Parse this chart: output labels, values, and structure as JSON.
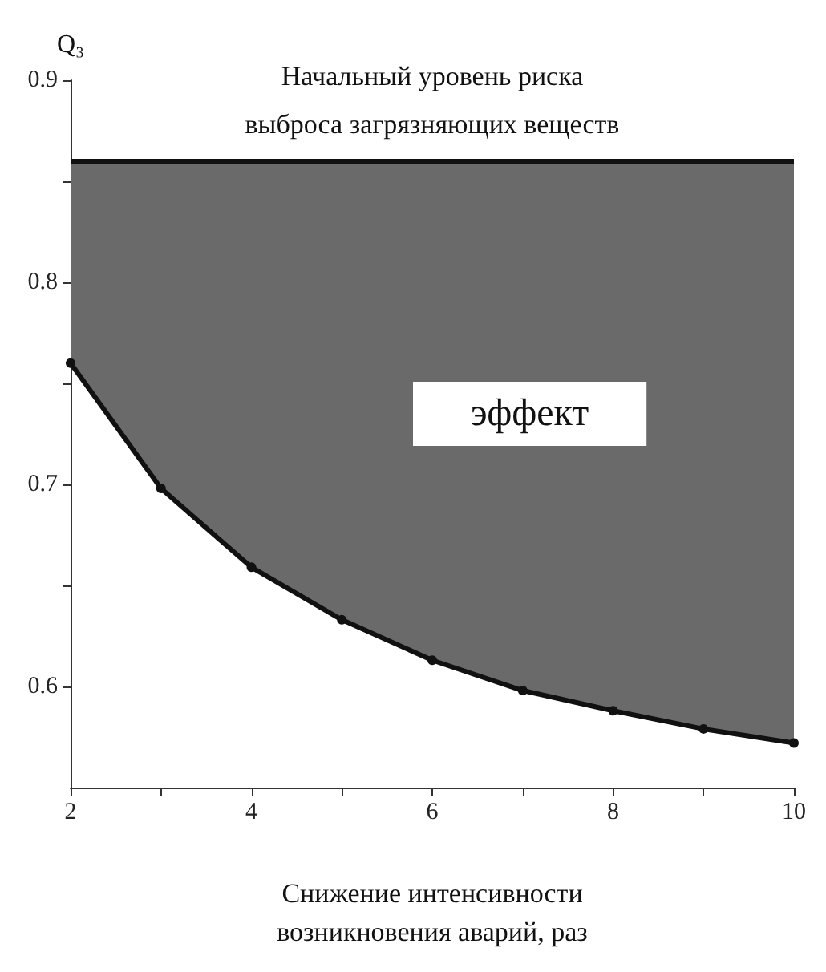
{
  "chart_data": {
    "type": "line",
    "x": [
      2,
      3,
      4,
      5,
      6,
      7,
      8,
      9,
      10
    ],
    "series": [
      {
        "color": "#111111",
        "values": [
          0.76,
          0.698,
          0.659,
          0.633,
          0.613,
          0.598,
          0.588,
          0.579,
          0.572
        ],
        "lower": [
          0.76,
          0.698,
          0.659,
          0.633,
          0.613,
          0.598,
          0.588,
          0.579,
          0.572
        ],
        "upper": [
          0.86,
          0.86,
          0.86,
          0.86,
          0.86,
          0.86,
          0.86,
          0.86,
          0.86
        ]
      }
    ],
    "marker": "circle",
    "line_style": "solid",
    "xlim": [
      2,
      10
    ],
    "xticks": [
      2,
      {
        "value": 3,
        "label": null
      },
      4,
      {
        "value": 5,
        "label": null
      },
      6,
      {
        "value": 7,
        "label": null
      },
      8,
      {
        "value": 9,
        "label": null
      },
      10
    ],
    "ylim": [
      0.55,
      0.9
    ],
    "yticks": [
      {
        "value": 0.6,
        "label": "0.6"
      },
      {
        "value": 0.65,
        "label": null
      },
      {
        "value": 0.7,
        "label": "0.7"
      },
      {
        "value": 0.75,
        "label": null
      },
      {
        "value": 0.8,
        "label": "0.8"
      },
      {
        "value": 0.85,
        "label": null
      },
      {
        "value": 0.9,
        "label": "0.9"
      }
    ],
    "ylabel": "Q₃",
    "xlabel": "Снижение интенсивности\nвозникновения аварий, раз",
    "ref_lines": [
      {
        "axis": "y",
        "value": 0.86,
        "label": "Начальный уровень риска\nвыброса загрязняющих веществ",
        "color": "#111111"
      }
    ],
    "annotations": [
      "эффект"
    ],
    "grid": false
  }
}
